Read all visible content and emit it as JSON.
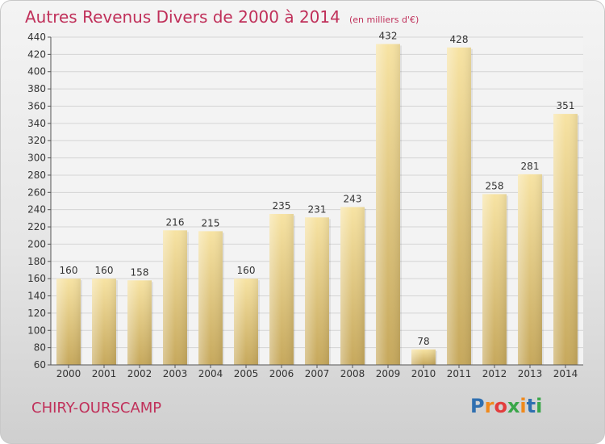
{
  "title": "Autres Revenus Divers de 2000 à 2014",
  "subtitle": "(en milliers d'€)",
  "commune": "CHIRY-OURSCAMP",
  "logo": {
    "text": "Proxiti",
    "colors": [
      "#2f6fb0",
      "#f08a1c",
      "#e23d3d",
      "#3aa64a",
      "#f08a1c",
      "#2f6fb0",
      "#3aa64a"
    ]
  },
  "colors": {
    "title": "#c0305a",
    "bar_light": "#f5de9a",
    "bar_dark": "#c8aa5e"
  },
  "chart_data": {
    "type": "bar",
    "categories": [
      "2000",
      "2001",
      "2002",
      "2003",
      "2004",
      "2005",
      "2006",
      "2007",
      "2008",
      "2009",
      "2010",
      "2011",
      "2012",
      "2013",
      "2014"
    ],
    "values": [
      160,
      160,
      158,
      216,
      215,
      160,
      235,
      231,
      243,
      432,
      78,
      428,
      258,
      281,
      351
    ],
    "ylim": [
      60,
      440
    ],
    "yticks": [
      60,
      80,
      100,
      120,
      140,
      160,
      180,
      200,
      220,
      240,
      260,
      280,
      300,
      320,
      340,
      360,
      380,
      400,
      420,
      440
    ],
    "grid": true,
    "xlabel": "",
    "ylabel": ""
  }
}
